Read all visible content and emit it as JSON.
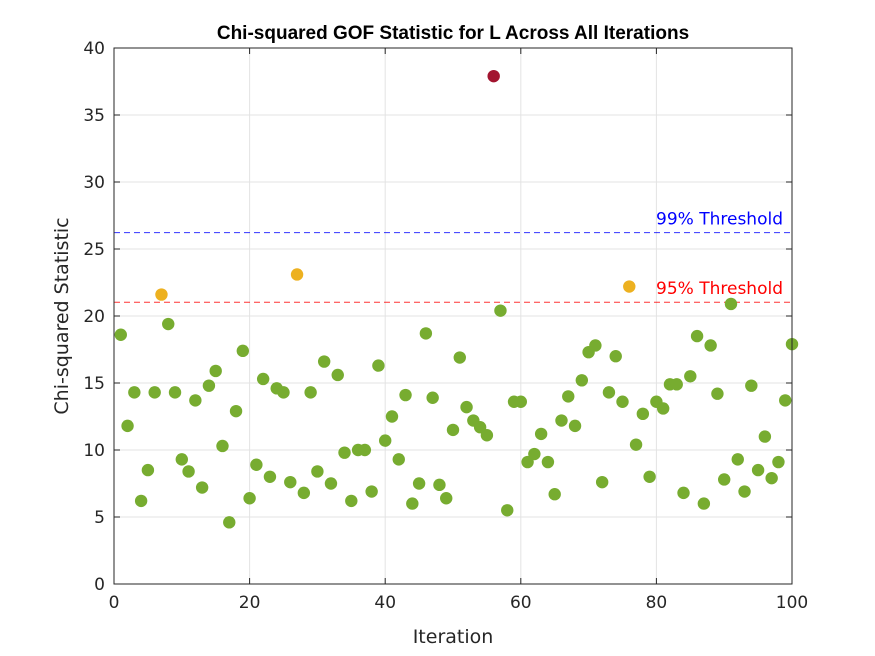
{
  "chart_data": {
    "type": "scatter",
    "title": "Chi-squared GOF Statistic for L Across All Iterations",
    "xlabel": "Iteration",
    "ylabel": "Chi-squared Statistic",
    "xlim": [
      0,
      100
    ],
    "ylim": [
      0,
      40
    ],
    "xticks": [
      0,
      20,
      40,
      60,
      80,
      100
    ],
    "yticks": [
      0,
      5,
      10,
      15,
      20,
      25,
      30,
      35,
      40
    ],
    "grid": true,
    "colors": {
      "normal": "#77ac30",
      "above_95": "#edb120",
      "above_99": "#a2142f",
      "threshold_95": "#ff0000",
      "threshold_99": "#0000ff"
    },
    "thresholds": [
      {
        "label": "95% Threshold",
        "value": 21.03
      },
      {
        "label": "99% Threshold",
        "value": 26.22
      }
    ],
    "x": [
      1,
      2,
      3,
      4,
      5,
      6,
      7,
      8,
      9,
      10,
      11,
      12,
      13,
      14,
      15,
      16,
      17,
      18,
      19,
      20,
      21,
      22,
      23,
      24,
      25,
      26,
      27,
      28,
      29,
      30,
      31,
      32,
      33,
      34,
      35,
      36,
      37,
      38,
      39,
      40,
      41,
      42,
      43,
      44,
      45,
      46,
      47,
      48,
      49,
      50,
      51,
      52,
      53,
      54,
      55,
      56,
      57,
      58,
      59,
      60,
      61,
      62,
      63,
      64,
      65,
      66,
      67,
      68,
      69,
      70,
      71,
      72,
      73,
      74,
      75,
      76,
      77,
      78,
      79,
      80,
      81,
      82,
      83,
      84,
      85,
      86,
      87,
      88,
      89,
      90,
      91,
      92,
      93,
      94,
      95,
      96,
      97,
      98,
      99,
      100
    ],
    "y": [
      18.6,
      11.8,
      14.3,
      6.2,
      8.5,
      14.3,
      21.6,
      19.4,
      14.3,
      9.3,
      8.4,
      13.7,
      7.2,
      14.8,
      15.9,
      10.3,
      4.6,
      12.9,
      17.4,
      6.4,
      8.9,
      15.3,
      8.0,
      14.6,
      14.3,
      7.6,
      23.1,
      6.8,
      14.3,
      8.4,
      16.6,
      7.5,
      15.6,
      9.8,
      6.2,
      10.0,
      10.0,
      6.9,
      16.3,
      10.7,
      12.5,
      9.3,
      14.1,
      6.0,
      7.5,
      18.7,
      13.9,
      7.4,
      6.4,
      11.5,
      16.9,
      13.2,
      12.2,
      11.7,
      11.1,
      37.9,
      20.4,
      5.5,
      13.6,
      13.6,
      9.1,
      9.7,
      11.2,
      9.1,
      6.7,
      12.2,
      14.0,
      11.8,
      15.2,
      17.3,
      17.8,
      7.6,
      14.3,
      17.0,
      13.6,
      22.2,
      10.4,
      12.7,
      8.0,
      13.6,
      13.1,
      14.9,
      14.9,
      6.8,
      15.5,
      18.5,
      6.0,
      17.8,
      14.2,
      7.8,
      20.9,
      9.3,
      6.9,
      14.8,
      8.5,
      11.0,
      7.9,
      9.1,
      13.7,
      17.9
    ]
  }
}
